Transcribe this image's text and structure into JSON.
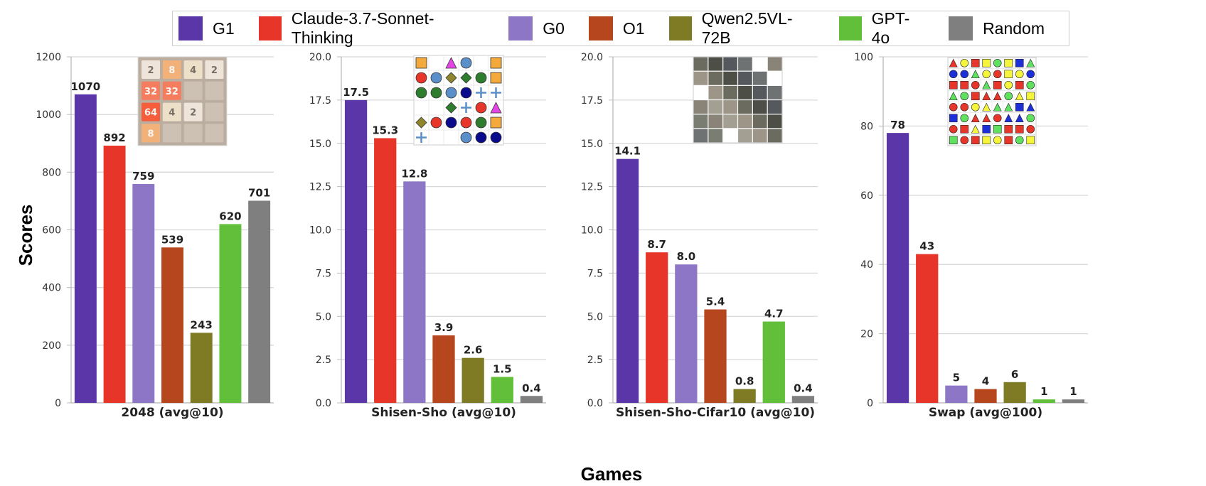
{
  "figure": {
    "ylabel": "Scores",
    "xlabel": "Games"
  },
  "legend": [
    {
      "name": "G1",
      "color": "#5b36a8"
    },
    {
      "name": "Claude-3.7-Sonnet-Thinking",
      "color": "#e8352a"
    },
    {
      "name": "G0",
      "color": "#8d76c6"
    },
    {
      "name": "O1",
      "color": "#b5461d"
    },
    {
      "name": "Qwen2.5VL-72B",
      "color": "#7f7b25"
    },
    {
      "name": "GPT-4o",
      "color": "#62bf3a"
    },
    {
      "name": "Random",
      "color": "#7f7f7f"
    }
  ],
  "chart_data": [
    {
      "type": "bar",
      "xlabel": "2048 (avg@10)",
      "categories": [
        "G1",
        "Claude-3.7-Sonnet-Thinking",
        "G0",
        "O1",
        "Qwen2.5VL-72B",
        "GPT-4o",
        "Random"
      ],
      "values": [
        1070,
        892,
        759,
        539,
        243,
        620,
        701
      ],
      "value_labels": [
        "1070",
        "892",
        "759",
        "539",
        "243",
        "620",
        "701"
      ],
      "ylim": [
        0,
        1200
      ],
      "yticks": [
        0,
        200,
        400,
        600,
        800,
        1000,
        1200
      ],
      "ytick_labels": [
        "0",
        "200",
        "400",
        "600",
        "800",
        "1000",
        "1200"
      ],
      "grid": true,
      "inset": "2048-board"
    },
    {
      "type": "bar",
      "xlabel": "Shisen-Sho (avg@10)",
      "categories": [
        "G1",
        "Claude-3.7-Sonnet-Thinking",
        "G0",
        "O1",
        "Qwen2.5VL-72B",
        "GPT-4o",
        "Random"
      ],
      "values": [
        17.5,
        15.3,
        12.8,
        3.9,
        2.6,
        1.5,
        0.4
      ],
      "value_labels": [
        "17.5",
        "15.3",
        "12.8",
        "3.9",
        "2.6",
        "1.5",
        "0.4"
      ],
      "ylim": [
        0,
        20
      ],
      "yticks": [
        0,
        2.5,
        5,
        7.5,
        10,
        12.5,
        15,
        17.5,
        20
      ],
      "ytick_labels": [
        "0.0",
        "2.5",
        "5.0",
        "7.5",
        "10.0",
        "12.5",
        "15.0",
        "17.5",
        "20.0"
      ],
      "grid": true,
      "inset": "shisen-sho-board"
    },
    {
      "type": "bar",
      "xlabel": "Shisen-Sho-Cifar10 (avg@10)",
      "categories": [
        "G1",
        "Claude-3.7-Sonnet-Thinking",
        "G0",
        "O1",
        "Qwen2.5VL-72B",
        "GPT-4o",
        "Random"
      ],
      "values": [
        14.1,
        8.7,
        8.0,
        5.4,
        0.8,
        4.7,
        0.4
      ],
      "value_labels": [
        "14.1",
        "8.7",
        "8.0",
        "5.4",
        "0.8",
        "4.7",
        "0.4"
      ],
      "ylim": [
        0,
        20
      ],
      "yticks": [
        0,
        2.5,
        5,
        7.5,
        10,
        12.5,
        15,
        17.5,
        20
      ],
      "ytick_labels": [
        "0.0",
        "2.5",
        "5.0",
        "7.5",
        "10.0",
        "12.5",
        "15.0",
        "17.5",
        "20.0"
      ],
      "grid": true,
      "inset": "cifar10-image-grid"
    },
    {
      "type": "bar",
      "xlabel": "Swap (avg@100)",
      "categories": [
        "G1",
        "Claude-3.7-Sonnet-Thinking",
        "G0",
        "O1",
        "Qwen2.5VL-72B",
        "GPT-4o",
        "Random"
      ],
      "values": [
        78,
        43,
        5,
        4,
        6,
        1,
        1
      ],
      "value_labels": [
        "78",
        "43",
        "5",
        "4",
        "6",
        "1",
        "1"
      ],
      "ylim": [
        0,
        100
      ],
      "yticks": [
        0,
        20,
        40,
        60,
        80,
        100
      ],
      "ytick_labels": [
        "0",
        "20",
        "40",
        "60",
        "80",
        "100"
      ],
      "grid": true,
      "inset": "swap-board"
    }
  ],
  "insets": {
    "board_2048": [
      [
        "2",
        "8",
        "4",
        "2"
      ],
      [
        "32",
        "32",
        "",
        ""
      ],
      [
        "64",
        "4",
        "2",
        ""
      ],
      [
        "8",
        "",
        "",
        ""
      ]
    ],
    "shisen_sho": [
      [
        "sq-orange",
        "",
        "tri-magenta",
        "circ-blue",
        "",
        "sq-orange"
      ],
      [
        "circ-red",
        "circ-blue",
        "dia-olive",
        "dia-green",
        "circ-green",
        "sq-orange"
      ],
      [
        "circ-green",
        "circ-green",
        "circ-blue",
        "circ-navy",
        "plus-blue",
        "plus-blue"
      ],
      [
        "",
        "",
        "dia-green",
        "plus-blue",
        "circ-red",
        "tri-magenta"
      ],
      [
        "dia-olive",
        "circ-red",
        "circ-navy",
        "circ-red",
        "circ-green",
        "sq-orange"
      ],
      [
        "plus-blue",
        "",
        "",
        "circ-blue",
        "circ-navy",
        "circ-navy"
      ]
    ],
    "swap": [
      [
        "tri-red",
        "circ-yellow",
        "sq-red",
        "sq-yellow",
        "circ-green",
        "sq-yellow",
        "sq-blue",
        "tri-green"
      ],
      [
        "circ-blue",
        "circ-blue",
        "tri-green",
        "circ-yellow",
        "circ-red",
        "sq-yellow",
        "circ-yellow",
        "circ-blue"
      ],
      [
        "sq-red",
        "sq-red",
        "circ-red",
        "tri-green",
        "sq-red",
        "circ-yellow",
        "sq-red",
        "circ-green"
      ],
      [
        "tri-green",
        "circ-green",
        "sq-red",
        "tri-red",
        "tri-red",
        "circ-green",
        "tri-yellow",
        "sq-yellow"
      ],
      [
        "circ-red",
        "circ-red",
        "circ-yellow",
        "tri-yellow",
        "tri-green",
        "tri-green",
        "sq-blue",
        "tri-blue"
      ],
      [
        "sq-blue",
        "circ-green",
        "tri-red",
        "tri-red",
        "circ-red",
        "tri-blue",
        "tri-blue",
        "circ-green"
      ],
      [
        "circ-red",
        "sq-red",
        "tri-yellow",
        "sq-blue",
        "sq-green",
        "sq-red",
        "sq-red",
        "circ-red"
      ],
      [
        "sq-green",
        "circ-red",
        "sq-red",
        "sq-yellow",
        "circ-yellow",
        "sq-red",
        "circ-green",
        "sq-yellow"
      ]
    ]
  }
}
